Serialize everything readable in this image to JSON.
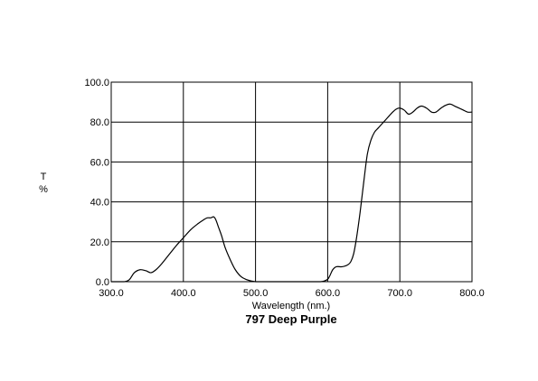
{
  "chart_data": {
    "type": "line",
    "title": "797 Deep Purple",
    "xlabel": "Wavelength (nm.)",
    "ylabel_line1": "T",
    "ylabel_line2": "%",
    "xlim": [
      300,
      800
    ],
    "ylim": [
      0,
      100
    ],
    "grid": true,
    "x_ticks": [
      300,
      400,
      500,
      600,
      700,
      800
    ],
    "y_ticks": [
      0,
      20,
      40,
      60,
      80,
      100
    ],
    "x_tick_labels": [
      "300.0",
      "400.0",
      "500.0",
      "600.0",
      "700.0",
      "800.0"
    ],
    "y_tick_labels": [
      "0.0",
      "20.0",
      "40.0",
      "60.0",
      "80.0",
      "100.0"
    ],
    "line_color": "#000000",
    "grid_color": "#000000",
    "series": [
      {
        "x": [
          300,
          310,
          318,
          325,
          332,
          340,
          348,
          355,
          362,
          370,
          380,
          390,
          400,
          410,
          420,
          428,
          433,
          438,
          442,
          445,
          449,
          453,
          458,
          465,
          472,
          480,
          488,
          495,
          500,
          505,
          510,
          520,
          540,
          560,
          580,
          590,
          595,
          600,
          603,
          607,
          612,
          620,
          628,
          632,
          636,
          640,
          645,
          650,
          655,
          660,
          665,
          670,
          675,
          680,
          685,
          690,
          695,
          700,
          706,
          712,
          718,
          724,
          730,
          737,
          744,
          750,
          757,
          764,
          770,
          776,
          782,
          788,
          794,
          800
        ],
        "y": [
          0,
          0,
          0,
          1,
          4.5,
          6,
          5.5,
          4.5,
          6,
          9,
          13.5,
          18,
          22,
          26,
          29,
          31,
          32,
          32,
          32.5,
          31,
          27,
          23,
          17,
          11,
          6,
          2.5,
          1,
          0.3,
          0,
          0,
          0,
          0,
          0,
          0,
          0,
          0,
          0.3,
          1.2,
          3,
          6,
          7.5,
          7.5,
          8.5,
          10,
          14,
          22,
          35,
          50,
          64,
          71,
          75,
          77,
          79,
          81,
          83,
          85,
          86.5,
          87,
          86,
          84,
          85,
          87,
          88,
          87,
          85,
          85,
          87,
          88.5,
          89,
          88,
          87,
          86,
          85,
          85
        ]
      }
    ]
  }
}
